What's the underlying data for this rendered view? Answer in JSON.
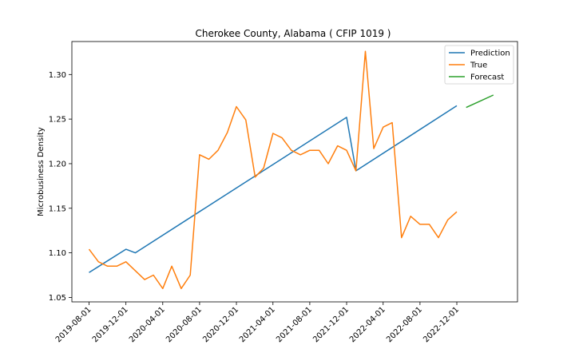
{
  "chart_data": {
    "type": "line",
    "title": "Cherokee County, Alabama ( CFIP 1019 )",
    "xlabel": "",
    "ylabel": "Microbusiness Density",
    "ylim": [
      1.045,
      1.337
    ],
    "yticks": [
      1.05,
      1.1,
      1.15,
      1.2,
      1.25,
      1.3
    ],
    "ytick_labels": [
      "1.05",
      "1.10",
      "1.15",
      "1.20",
      "1.25",
      "1.30"
    ],
    "xlim": [
      "2019-06-05",
      "2023-06-20"
    ],
    "xticks": [
      "2019-08-01",
      "2019-12-01",
      "2020-04-01",
      "2020-08-01",
      "2020-12-01",
      "2021-04-01",
      "2021-08-01",
      "2021-12-01",
      "2022-04-01",
      "2022-08-01",
      "2022-12-01"
    ],
    "grid": false,
    "legend_position": "top-right",
    "series": [
      {
        "name": "Prediction",
        "color": "#1f77b4",
        "points": [
          [
            "2019-08-01",
            1.078
          ],
          [
            "2019-12-01",
            1.104
          ],
          [
            "2020-01-01",
            1.1
          ],
          [
            "2021-12-01",
            1.252
          ],
          [
            "2022-01-01",
            1.192
          ],
          [
            "2022-12-01",
            1.265
          ]
        ]
      },
      {
        "name": "True",
        "color": "#ff7f0e",
        "points": [
          [
            "2019-08-01",
            1.104
          ],
          [
            "2019-09-01",
            1.09
          ],
          [
            "2019-10-01",
            1.085
          ],
          [
            "2019-11-01",
            1.085
          ],
          [
            "2019-12-01",
            1.09
          ],
          [
            "2020-01-01",
            1.08
          ],
          [
            "2020-02-01",
            1.07
          ],
          [
            "2020-03-01",
            1.075
          ],
          [
            "2020-04-01",
            1.06
          ],
          [
            "2020-05-01",
            1.085
          ],
          [
            "2020-06-01",
            1.06
          ],
          [
            "2020-07-01",
            1.075
          ],
          [
            "2020-08-01",
            1.21
          ],
          [
            "2020-09-01",
            1.205
          ],
          [
            "2020-10-01",
            1.215
          ],
          [
            "2020-11-01",
            1.235
          ],
          [
            "2020-12-01",
            1.264
          ],
          [
            "2021-01-01",
            1.249
          ],
          [
            "2021-02-01",
            1.185
          ],
          [
            "2021-03-01",
            1.195
          ],
          [
            "2021-04-01",
            1.234
          ],
          [
            "2021-05-01",
            1.229
          ],
          [
            "2021-06-01",
            1.215
          ],
          [
            "2021-07-01",
            1.21
          ],
          [
            "2021-08-01",
            1.215
          ],
          [
            "2021-09-01",
            1.215
          ],
          [
            "2021-10-01",
            1.2
          ],
          [
            "2021-11-01",
            1.22
          ],
          [
            "2021-12-01",
            1.215
          ],
          [
            "2022-01-01",
            1.192
          ],
          [
            "2022-02-01",
            1.326
          ],
          [
            "2022-03-01",
            1.217
          ],
          [
            "2022-04-01",
            1.241
          ],
          [
            "2022-05-01",
            1.246
          ],
          [
            "2022-06-01",
            1.117
          ],
          [
            "2022-07-01",
            1.141
          ],
          [
            "2022-08-01",
            1.132
          ],
          [
            "2022-09-01",
            1.132
          ],
          [
            "2022-10-01",
            1.117
          ],
          [
            "2022-11-01",
            1.137
          ],
          [
            "2022-12-01",
            1.146
          ]
        ]
      },
      {
        "name": "Forecast",
        "color": "#2ca02c",
        "points": [
          [
            "2023-01-01",
            1.263
          ],
          [
            "2023-04-01",
            1.277
          ]
        ]
      }
    ]
  }
}
